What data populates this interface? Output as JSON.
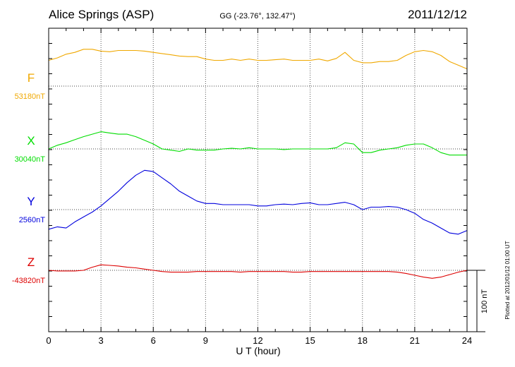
{
  "chart_data": {
    "type": "line",
    "title": "Alice Springs (ASP)",
    "coordinates": "GG (-23.76°, 132.47°)",
    "date": "2011/12/12",
    "xlabel": "U T (hour)",
    "xlim": [
      0,
      24
    ],
    "x_ticks": [
      0,
      3,
      6,
      9,
      12,
      15,
      18,
      21,
      24
    ],
    "grid": true,
    "scale_bar": {
      "label": "100 nT",
      "value_nT": 100
    },
    "plotted_note": "Plotted at 2012/01/12 01:00 UT",
    "series": [
      {
        "name": "F",
        "baseline_label": "53180nT",
        "baseline_nT": 53180,
        "color": "#f0a800",
        "x": [
          0,
          0.5,
          1,
          1.5,
          2,
          2.5,
          3,
          3.5,
          4,
          4.5,
          5,
          5.5,
          6,
          6.5,
          7,
          7.5,
          8,
          8.5,
          9,
          9.5,
          10,
          10.5,
          11,
          11.5,
          12,
          12.5,
          13,
          13.5,
          14,
          14.5,
          15,
          15.5,
          16,
          16.5,
          17,
          17.5,
          18,
          18.5,
          19,
          19.5,
          20,
          20.5,
          21,
          21.5,
          22,
          22.5,
          23,
          23.5,
          24
        ],
        "values": [
          53222,
          53226,
          53232,
          53235,
          53240,
          53240,
          53237,
          53236,
          53238,
          53238,
          53238,
          53237,
          53235,
          53233,
          53231,
          53229,
          53228,
          53228,
          53224,
          53222,
          53222,
          53224,
          53222,
          53224,
          53222,
          53222,
          53223,
          53224,
          53222,
          53222,
          53222,
          53224,
          53221,
          53225,
          53235,
          53222,
          53218,
          53218,
          53220,
          53220,
          53222,
          53230,
          53236,
          53238,
          53236,
          53230,
          53220,
          53214,
          53208
        ]
      },
      {
        "name": "X",
        "baseline_label": "30040nT",
        "baseline_nT": 30040,
        "color": "#00dd00",
        "x": [
          0,
          0.5,
          1,
          1.5,
          2,
          2.5,
          3,
          3.5,
          4,
          4.5,
          5,
          5.5,
          6,
          6.5,
          7,
          7.5,
          8,
          8.5,
          9,
          9.5,
          10,
          10.5,
          11,
          11.5,
          12,
          12.5,
          13,
          13.5,
          14,
          14.5,
          15,
          15.5,
          16,
          16.5,
          17,
          17.5,
          18,
          18.5,
          19,
          19.5,
          20,
          20.5,
          21,
          21.5,
          22,
          22.5,
          23,
          23.5,
          24
        ],
        "values": [
          30040,
          30046,
          30050,
          30055,
          30060,
          30064,
          30068,
          30066,
          30064,
          30064,
          30060,
          30054,
          30048,
          30040,
          30038,
          30036,
          30040,
          30038,
          30038,
          30038,
          30040,
          30041,
          30040,
          30042,
          30040,
          30040,
          30040,
          30039,
          30040,
          30040,
          30040,
          30040,
          30040,
          30042,
          30050,
          30048,
          30034,
          30034,
          30038,
          30040,
          30042,
          30046,
          30048,
          30048,
          30042,
          30034,
          30030,
          30030,
          30030
        ]
      },
      {
        "name": "Y",
        "baseline_label": "2560nT",
        "baseline_nT": 2560,
        "color": "#0000dd",
        "x": [
          0,
          0.5,
          1,
          1.5,
          2,
          2.5,
          3,
          3.5,
          4,
          4.5,
          5,
          5.5,
          6,
          6.5,
          7,
          7.5,
          8,
          8.5,
          9,
          9.5,
          10,
          10.5,
          11,
          11.5,
          12,
          12.5,
          13,
          13.5,
          14,
          14.5,
          15,
          15.5,
          16,
          16.5,
          17,
          17.5,
          18,
          18.5,
          19,
          19.5,
          20,
          20.5,
          21,
          21.5,
          22,
          22.5,
          23,
          23.5,
          24
        ],
        "values": [
          2528,
          2532,
          2530,
          2540,
          2548,
          2556,
          2566,
          2578,
          2590,
          2604,
          2616,
          2624,
          2622,
          2612,
          2602,
          2590,
          2582,
          2574,
          2570,
          2570,
          2568,
          2568,
          2568,
          2568,
          2566,
          2566,
          2568,
          2569,
          2568,
          2570,
          2571,
          2568,
          2568,
          2570,
          2572,
          2568,
          2560,
          2564,
          2564,
          2565,
          2564,
          2560,
          2554,
          2544,
          2538,
          2530,
          2522,
          2520,
          2526
        ]
      },
      {
        "name": "Z",
        "baseline_label": "-43820nT",
        "baseline_nT": -43820,
        "color": "#dd0000",
        "x": [
          0,
          0.5,
          1,
          1.5,
          2,
          2.5,
          3,
          3.5,
          4,
          4.5,
          5,
          5.5,
          6,
          6.5,
          7,
          7.5,
          8,
          8.5,
          9,
          9.5,
          10,
          10.5,
          11,
          11.5,
          12,
          12.5,
          13,
          13.5,
          14,
          14.5,
          15,
          15.5,
          16,
          16.5,
          17,
          17.5,
          18,
          18.5,
          19,
          19.5,
          20,
          20.5,
          21,
          21.5,
          22,
          22.5,
          23,
          23.5,
          24
        ],
        "values": [
          -43820,
          -43821,
          -43821,
          -43821,
          -43820,
          -43815,
          -43811,
          -43812,
          -43813,
          -43815,
          -43816,
          -43818,
          -43820,
          -43822,
          -43823,
          -43823,
          -43823,
          -43822,
          -43822,
          -43822,
          -43822,
          -43822,
          -43823,
          -43822,
          -43822,
          -43822,
          -43822,
          -43822,
          -43823,
          -43823,
          -43822,
          -43822,
          -43822,
          -43822,
          -43822,
          -43822,
          -43822,
          -43822,
          -43822,
          -43822,
          -43823,
          -43825,
          -43828,
          -43831,
          -43833,
          -43831,
          -43827,
          -43823,
          -43820
        ]
      }
    ]
  }
}
